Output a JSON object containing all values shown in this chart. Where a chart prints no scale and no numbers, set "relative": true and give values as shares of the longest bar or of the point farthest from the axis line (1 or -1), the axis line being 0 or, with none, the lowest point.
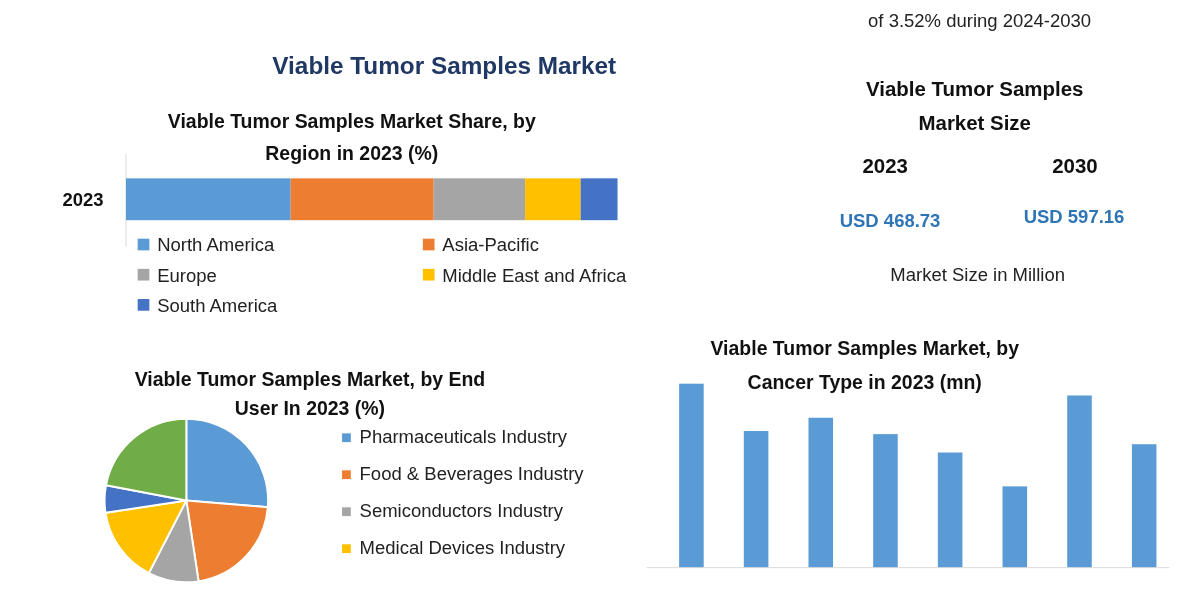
{
  "chart_data": [
    {
      "type": "bar",
      "orientation": "horizontal",
      "stacked": true,
      "relative": true,
      "title": "Viable Tumor Samples Market",
      "subtitle": "Viable Tumor Samples Market Share, by Region in 2023 (%)",
      "categories": [
        "2023"
      ],
      "legend": "bottom",
      "series": [
        {
          "name": "North America",
          "color": "#5b9bd5",
          "values": [
            0.335
          ]
        },
        {
          "name": "Asia-Pacific",
          "color": "#ed7d31",
          "values": [
            0.291
          ]
        },
        {
          "name": "Europe",
          "color": "#a5a5a5",
          "values": [
            0.186
          ]
        },
        {
          "name": "Middle East and Africa",
          "color": "#ffc000",
          "values": [
            0.113
          ]
        },
        {
          "name": "South America",
          "color": "#4472c4",
          "values": [
            0.075
          ]
        }
      ]
    },
    {
      "type": "other",
      "title": "Viable Tumor Samples Market Size",
      "annotations": [
        "of 3.52% during 2024-2030",
        "2023",
        "2030",
        "USD 468.73",
        "USD 597.16",
        "Market Size in Million"
      ]
    },
    {
      "type": "pie",
      "title": "Viable Tumor Samples Market, by End User In 2023 (%)",
      "categories": [
        "Pharmaceuticals Industry",
        "Food & Beverages Industry",
        "Semiconductors Industry",
        "Medical Devices Industry",
        null,
        null
      ],
      "values": [
        26.3,
        21.3,
        10,
        15,
        5.4,
        22
      ],
      "colors": [
        "#5b9bd5",
        "#ed7d31",
        "#a5a5a5",
        "#ffc000",
        "#4472c4",
        "#70ad47"
      ],
      "legend": "right"
    },
    {
      "type": "bar",
      "relative": true,
      "title": "Viable Tumor Samples Market, by Cancer Type in 2023 (mn)",
      "categories": [
        null,
        null,
        null,
        null,
        null,
        null,
        null,
        null
      ],
      "values": [
        1,
        0.743,
        0.815,
        0.726,
        0.626,
        0.442,
        0.936,
        0.671
      ],
      "color": "#5b9bd5"
    }
  ]
}
